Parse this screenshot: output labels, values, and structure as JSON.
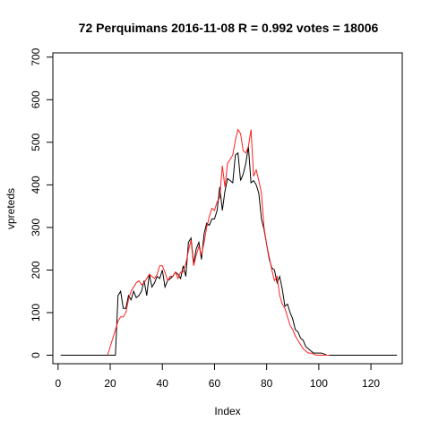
{
  "chart_data": {
    "type": "line",
    "title": "72 Perquimans 2016-11-08 R = 0.992 votes = 18006",
    "xlabel": "Index",
    "ylabel": "vpreteds",
    "xlim": [
      -2,
      132
    ],
    "ylim": [
      -20,
      710
    ],
    "xticks": [
      "0",
      "20",
      "40",
      "60",
      "80",
      "100",
      "120"
    ],
    "yticks": [
      "0",
      "100",
      "200",
      "300",
      "400",
      "500",
      "600",
      "700"
    ],
    "grid": false,
    "legend": "none",
    "series": [
      {
        "color": "#000000",
        "x": [
          1,
          2,
          3,
          4,
          5,
          6,
          7,
          8,
          9,
          10,
          11,
          12,
          13,
          14,
          15,
          16,
          17,
          18,
          19,
          20,
          21,
          22,
          23,
          24,
          25,
          26,
          27,
          28,
          29,
          30,
          31,
          32,
          33,
          34,
          35,
          36,
          37,
          38,
          39,
          40,
          41,
          42,
          43,
          44,
          45,
          46,
          47,
          48,
          49,
          50,
          51,
          52,
          53,
          54,
          55,
          56,
          57,
          58,
          59,
          60,
          61,
          62,
          63,
          64,
          65,
          66,
          67,
          68,
          69,
          70,
          71,
          72,
          73,
          74,
          75,
          76,
          77,
          78,
          79,
          80,
          81,
          82,
          83,
          84,
          85,
          86,
          87,
          88,
          89,
          90,
          91,
          92,
          93,
          94,
          95,
          96,
          97,
          98,
          99,
          100,
          101,
          102,
          103,
          104,
          105,
          106,
          107,
          108,
          109,
          110,
          111,
          112,
          113,
          114,
          115,
          116,
          117,
          118,
          119,
          120,
          121,
          122,
          123,
          124,
          125,
          126,
          127,
          128,
          129,
          130
        ],
        "y": [
          0,
          0,
          0,
          0,
          0,
          0,
          0,
          0,
          0,
          0,
          0,
          0,
          0,
          0,
          0,
          0,
          0,
          0,
          0,
          0,
          0,
          0,
          140,
          150,
          110,
          110,
          140,
          130,
          150,
          135,
          140,
          150,
          175,
          140,
          190,
          160,
          170,
          185,
          180,
          200,
          160,
          175,
          180,
          185,
          195,
          190,
          180,
          210,
          185,
          265,
          275,
          215,
          250,
          265,
          225,
          285,
          310,
          305,
          320,
          320,
          340,
          395,
          340,
          385,
          415,
          410,
          405,
          470,
          475,
          410,
          425,
          450,
          490,
          405,
          410,
          400,
          380,
          320,
          295,
          260,
          225,
          205,
          200,
          170,
          185,
          155,
          115,
          120,
          100,
          85,
          60,
          55,
          40,
          35,
          20,
          15,
          10,
          5,
          5,
          5,
          5,
          3,
          0,
          0,
          0,
          0,
          0,
          0,
          0,
          0,
          0,
          0,
          0,
          0,
          0,
          0,
          0,
          0,
          0,
          0,
          0,
          0,
          0,
          0,
          0,
          0,
          0,
          0,
          0,
          0
        ]
      },
      {
        "color": "#ff2020",
        "x": [
          19,
          20,
          21,
          22,
          23,
          24,
          25,
          26,
          27,
          28,
          29,
          30,
          31,
          32,
          33,
          34,
          35,
          36,
          37,
          38,
          39,
          40,
          41,
          42,
          43,
          44,
          45,
          46,
          47,
          48,
          49,
          50,
          51,
          52,
          53,
          54,
          55,
          56,
          57,
          58,
          59,
          60,
          61,
          62,
          63,
          64,
          65,
          66,
          67,
          68,
          69,
          70,
          71,
          72,
          73,
          74,
          75,
          76,
          77,
          78,
          79,
          80,
          81,
          82,
          83,
          84,
          85,
          86,
          87,
          88,
          89,
          90,
          91,
          92,
          93,
          94,
          95,
          96,
          97,
          98,
          99,
          100,
          101,
          102,
          103,
          104
        ],
        "y": [
          0,
          20,
          40,
          60,
          80,
          90,
          90,
          100,
          130,
          150,
          160,
          170,
          175,
          165,
          170,
          180,
          190,
          185,
          180,
          190,
          210,
          210,
          195,
          175,
          185,
          185,
          195,
          180,
          195,
          195,
          215,
          245,
          270,
          210,
          235,
          255,
          235,
          265,
          300,
          325,
          345,
          340,
          360,
          370,
          445,
          395,
          450,
          460,
          470,
          505,
          530,
          520,
          480,
          475,
          490,
          530,
          420,
          435,
          410,
          380,
          300,
          260,
          230,
          200,
          175,
          185,
          140,
          120,
          110,
          90,
          70,
          60,
          45,
          35,
          25,
          15,
          10,
          5,
          5,
          3,
          0,
          0,
          0,
          0,
          0,
          0
        ]
      }
    ]
  }
}
